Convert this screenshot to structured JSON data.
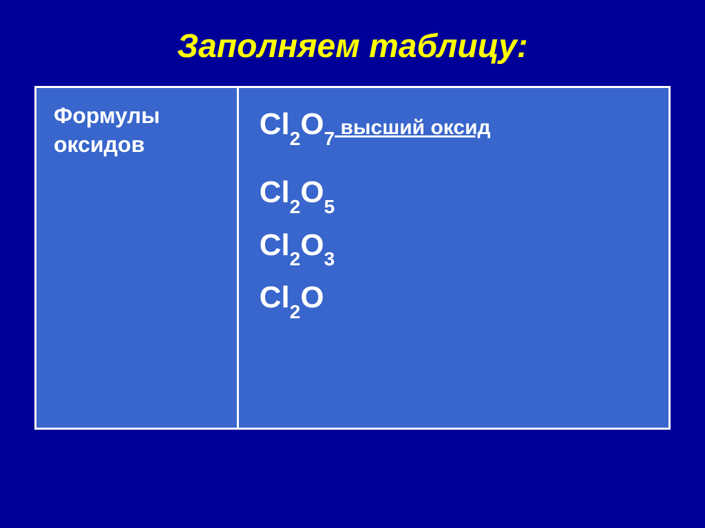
{
  "slide": {
    "title": "Заполняем таблицу:",
    "background_color": "#000099",
    "title_color": "#ffff00",
    "title_fontsize": 48,
    "title_style": "bold italic"
  },
  "table": {
    "border_color": "#ffffff",
    "cell_background": "#3966cc",
    "text_color": "#ffffff",
    "left_column": {
      "label_line1": "Формулы",
      "label_line2": "оксидов",
      "fontsize": 32
    },
    "right_column": {
      "formulas": [
        {
          "element1": "Cl",
          "sub1": "2",
          "element2": "O",
          "sub2": "7",
          "suffix": " высший оксид",
          "is_highest": true
        },
        {
          "element1": "Cl",
          "sub1": "2",
          "element2": "O",
          "sub2": "5",
          "suffix": "",
          "is_highest": false
        },
        {
          "element1": "Cl",
          "sub1": "2",
          "element2": "O",
          "sub2": "3",
          "suffix": "",
          "is_highest": false
        },
        {
          "element1": "Cl",
          "sub1": "2",
          "element2": "O",
          "sub2": "",
          "suffix": "",
          "is_highest": false
        }
      ],
      "formula_fontsize": 44,
      "suffix_fontsize": 30
    }
  }
}
